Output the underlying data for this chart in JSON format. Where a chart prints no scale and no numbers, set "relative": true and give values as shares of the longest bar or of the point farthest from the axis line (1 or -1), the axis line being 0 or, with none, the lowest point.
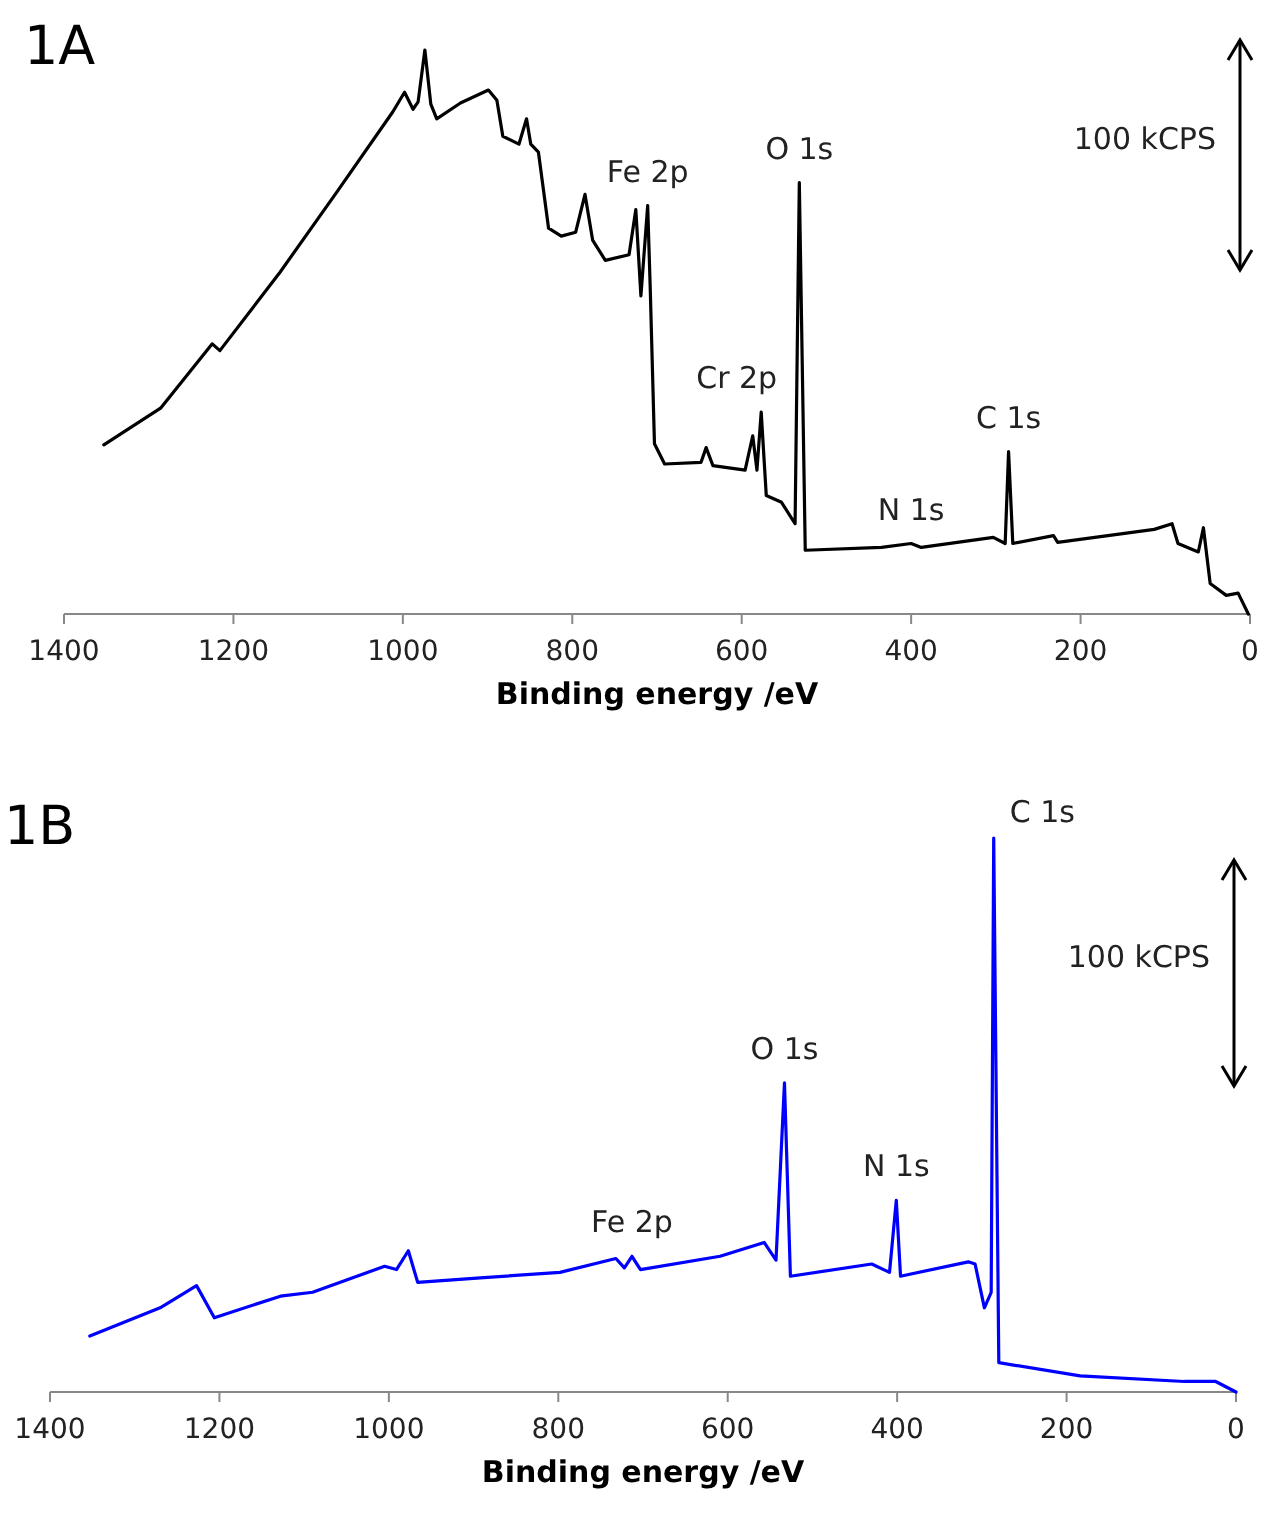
{
  "chart_data": [
    {
      "type": "line",
      "title": "1A",
      "xlabel": "Binding energy /eV",
      "relative": true,
      "xlim": [
        1400,
        0
      ],
      "xticks": [
        1400,
        1200,
        1000,
        800,
        600,
        400,
        200,
        0
      ],
      "grid": false,
      "marker": "none",
      "line_style": "solid",
      "annotations": [
        {
          "text": "Fe 2p",
          "x": 711,
          "y": 0.724
        },
        {
          "text": "O 1s",
          "x": 532,
          "y": 0.765
        },
        {
          "text": "Cr 2p",
          "x": 577,
          "y": 0.358
        },
        {
          "text": "N 1s",
          "x": 400,
          "y": 0.125
        },
        {
          "text": "C 1s",
          "x": 285,
          "y": 0.288
        },
        "100 kCPS"
      ],
      "series": [
        {
          "color": "#000000",
          "x": [
            1353,
            1286,
            1225,
            1216,
            1145,
            1078,
            1012,
            998,
            988,
            982,
            974,
            967,
            960,
            932,
            899,
            889,
            882,
            863,
            854,
            849,
            840,
            828,
            813,
            796,
            785,
            776,
            761,
            733,
            725,
            719,
            711,
            708,
            703,
            691,
            648,
            642,
            634,
            596,
            587,
            582,
            577,
            571,
            553,
            537,
            532,
            525,
            435,
            400,
            388,
            303,
            289,
            285,
            280,
            232,
            227,
            113,
            92,
            85,
            61,
            55,
            47,
            28,
            14,
            2
          ],
          "values": [
            0.3,
            0.365,
            0.479,
            0.467,
            0.606,
            0.748,
            0.89,
            0.925,
            0.895,
            0.908,
            1.0,
            0.904,
            0.878,
            0.906,
            0.929,
            0.911,
            0.847,
            0.833,
            0.878,
            0.833,
            0.819,
            0.684,
            0.67,
            0.677,
            0.744,
            0.663,
            0.627,
            0.637,
            0.717,
            0.564,
            0.724,
            0.578,
            0.302,
            0.266,
            0.269,
            0.295,
            0.263,
            0.255,
            0.316,
            0.255,
            0.358,
            0.21,
            0.198,
            0.16,
            0.765,
            0.113,
            0.118,
            0.125,
            0.118,
            0.136,
            0.125,
            0.288,
            0.125,
            0.139,
            0.127,
            0.15,
            0.16,
            0.125,
            0.11,
            0.153,
            0.054,
            0.033,
            0.037,
            0
          ]
        }
      ]
    },
    {
      "type": "line",
      "title": "1B",
      "xlabel": "Binding energy /eV",
      "relative": true,
      "xlim": [
        1400,
        0
      ],
      "xticks": [
        1400,
        1200,
        1000,
        800,
        600,
        400,
        200,
        0
      ],
      "grid": false,
      "marker": "none",
      "line_style": "solid",
      "annotations": [
        {
          "text": "C 1s",
          "x": 286,
          "y": 1.0
        },
        {
          "text": "O 1s",
          "x": 533,
          "y": 0.558
        },
        {
          "text": "N 1s",
          "x": 401,
          "y": 0.346
        },
        {
          "text": "Fe 2p",
          "x": 713,
          "y": 0.245
        },
        "100 kCPS"
      ],
      "series": [
        {
          "color": "#0000ff",
          "x": [
            1353,
            1270,
            1227,
            1206,
            1128,
            1090,
            1005,
            991,
            977,
            966,
            892,
            798,
            732,
            722,
            713,
            703,
            609,
            557,
            543,
            533,
            526,
            430,
            409,
            401,
            396,
            316,
            308,
            297,
            289,
            286,
            280,
            184,
            61,
            24,
            0
          ],
          "values": [
            0.101,
            0.152,
            0.192,
            0.134,
            0.173,
            0.18,
            0.227,
            0.221,
            0.255,
            0.198,
            0.206,
            0.216,
            0.241,
            0.224,
            0.245,
            0.221,
            0.245,
            0.27,
            0.238,
            0.558,
            0.209,
            0.231,
            0.216,
            0.346,
            0.209,
            0.235,
            0.231,
            0.152,
            0.18,
            1.0,
            0.053,
            0.029,
            0.019,
            0.019,
            0
          ]
        }
      ]
    }
  ]
}
